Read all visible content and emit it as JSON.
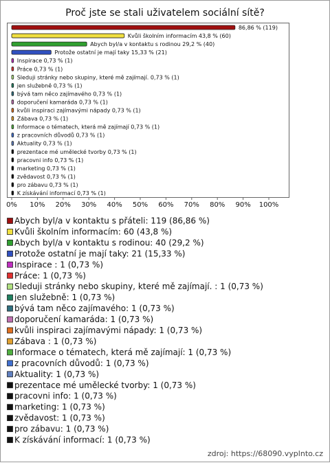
{
  "chart_data": {
    "type": "bar",
    "orientation": "horizontal",
    "title": "Proč jste se stali uživatelem sociální sítě?",
    "categories": [
      null,
      "Kvůli školním informacím",
      "Abych byl/a v kontaktu s rodinou",
      "Protože ostatní je mají taky",
      "Inspirace ",
      "Práce",
      "Sleduji stránky nebo skupiny, které mě zajímají. ",
      "jen služebně",
      "bývá tam něco zajímavého",
      "doporučení kamaráda",
      "kvůli inspiraci zajímavými nápady",
      "Zábava ",
      "Informace o tématech, která mě zajímají",
      "z pracovních důvodů",
      "Aktuality",
      "prezentace mé umělecké tvorby",
      "pracovni info",
      "marketing",
      "zvědavost",
      "pro zábavu",
      "K získávání informací"
    ],
    "values": [
      86.86,
      43.8,
      29.2,
      15.33,
      0.73,
      0.73,
      0.73,
      0.73,
      0.73,
      0.73,
      0.73,
      0.73,
      0.73,
      0.73,
      0.73,
      0.73,
      0.73,
      0.73,
      0.73,
      0.73,
      0.73
    ],
    "value_labels": [
      "86,86 % (119)",
      "43,8 % (60)",
      "29,2 % (40)",
      "15,33 % (21)",
      "0,73 % (1)",
      "0,73 % (1)",
      "0,73 % (1)",
      "0,73 % (1)",
      "0,73 % (1)",
      "0,73 % (1)",
      "0,73 % (1)",
      "0,73 % (1)",
      "0,73 % (1)",
      "0,73 % (1)",
      "0,73 % (1)",
      "0,73 % (1)",
      "0,73 % (1)",
      "0,73 % (1)",
      "0,73 % (1)",
      "0,73 % (1)",
      "0,73 % (1)"
    ],
    "colors": [
      "#a01010",
      "#f0e040",
      "#30a030",
      "#3050c0",
      "#c030c0",
      "#e03030",
      "#b0e080",
      "#208060",
      "#307080",
      "#c070b0",
      "#e07020",
      "#e0a030",
      "#50b040",
      "#4070d0",
      "#6080c0",
      "#111111",
      "#111111",
      "#111111",
      "#111111",
      "#111111",
      "#111111"
    ],
    "legend": [
      "Abych byl/a v kontaktu s přáteli: 119 (86,86 %)",
      "Kvůli školním informacím: 60 (43,8 %)",
      "Abych byl/a v kontaktu s rodinou: 40 (29,2 %)",
      "Protože ostatní je mají taky: 21 (15,33 %)",
      "Inspirace : 1 (0,73 %)",
      "Práce: 1 (0,73 %)",
      "Sleduji stránky nebo skupiny, které mě zajímají. : 1 (0,73 %)",
      "jen služebně: 1 (0,73 %)",
      "bývá tam něco zajímavého: 1 (0,73 %)",
      "doporučení kamaráda: 1 (0,73 %)",
      "kvůli inspiraci zajímavými nápady: 1 (0,73 %)",
      "Zábava : 1 (0,73 %)",
      "Informace o tématech, která mě zajímají: 1 (0,73 %)",
      "z pracovních důvodů: 1 (0,73 %)",
      "Aktuality: 1 (0,73 %)",
      "prezentace mé umělecké tvorby: 1 (0,73 %)",
      "pracovni info: 1 (0,73 %)",
      "marketing: 1 (0,73 %)",
      "zvědavost: 1 (0,73 %)",
      "pro zábavu: 1 (0,73 %)",
      "K získávání informací: 1 (0,73 %)"
    ],
    "xlim": [
      0,
      108
    ],
    "xticks": [
      {
        "value": 0,
        "label": "0%"
      },
      {
        "value": 10,
        "label": "10%"
      },
      {
        "value": 20,
        "label": "20%"
      },
      {
        "value": 30,
        "label": "30%"
      },
      {
        "value": 40,
        "label": "40%"
      },
      {
        "value": 50,
        "label": "50%"
      },
      {
        "value": 60,
        "label": "60%"
      },
      {
        "value": 70,
        "label": "70%"
      },
      {
        "value": 80,
        "label": "80%"
      },
      {
        "value": 90,
        "label": "90%"
      },
      {
        "value": 100,
        "label": "100%"
      }
    ],
    "source": "zdroj: https://68090.vyplnto.cz"
  }
}
